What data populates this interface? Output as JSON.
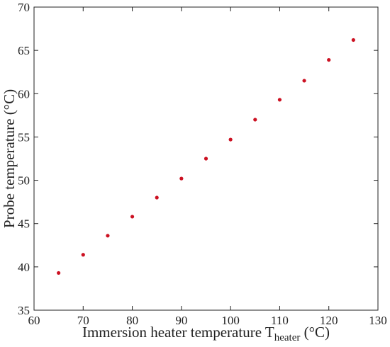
{
  "chart_data": {
    "type": "scatter",
    "xlabel": "Immersion heater temperature T",
    "xlabel_subscript": "heater",
    "xlabel_suffix": " (°C)",
    "ylabel": "Probe temperature (°C)",
    "xlim": [
      60,
      130
    ],
    "ylim": [
      35,
      70
    ],
    "xticks": [
      60,
      70,
      80,
      90,
      100,
      110,
      120,
      130
    ],
    "yticks": [
      35,
      40,
      45,
      50,
      55,
      60,
      65,
      70
    ],
    "grid": false,
    "marker_color": "#cc1122",
    "x": [
      65,
      70,
      75,
      80,
      85,
      90,
      95,
      100,
      105,
      110,
      115,
      120,
      125
    ],
    "y": [
      39.3,
      41.4,
      43.6,
      45.8,
      48.0,
      50.2,
      52.5,
      54.7,
      57.0,
      59.3,
      61.5,
      63.9,
      66.2
    ]
  }
}
